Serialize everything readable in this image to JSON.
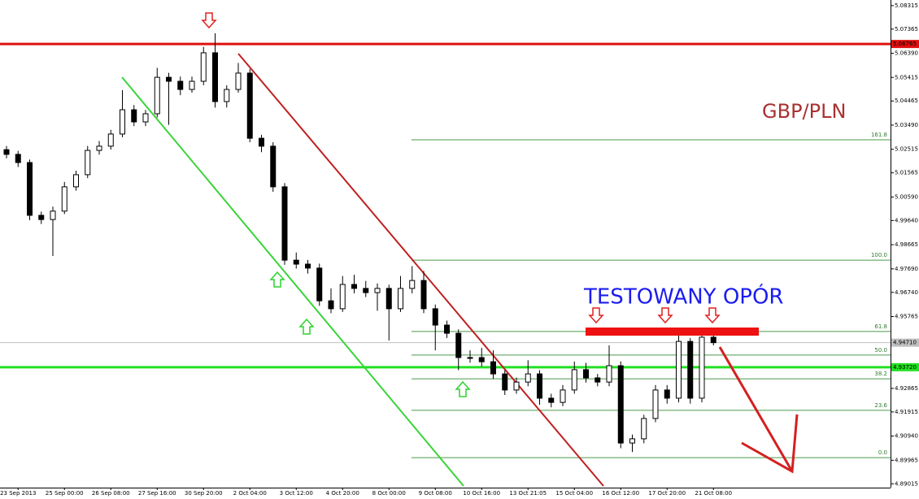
{
  "chart_data": {
    "type": "candlestick",
    "title": "GBP/PLN",
    "annotation": "TESTOWANY OPÓR",
    "up_color": "#ffffff",
    "down_color": "#000000",
    "title_color": "#a83232",
    "annotation_color": "#1c1cf0",
    "categories": [
      null,
      "23 Sep 2013",
      null,
      null,
      null,
      "25 Sep 00:00",
      null,
      null,
      null,
      "26 Sep 08:00",
      null,
      null,
      null,
      "27 Sep 16:00",
      null,
      null,
      null,
      "30 Sep 20:00",
      null,
      null,
      null,
      "2 Oct 04:00",
      null,
      null,
      null,
      "3 Oct 12:00",
      null,
      null,
      null,
      "4 Oct 20:00",
      null,
      null,
      null,
      "8 Oct 00:00",
      null,
      null,
      null,
      "9 Oct 08:00",
      null,
      null,
      null,
      "10 Oct 16:00",
      null,
      null,
      null,
      "13 Oct 21:05",
      null,
      null,
      null,
      "15 Oct 04:00",
      null,
      null,
      null,
      "16 Oct 12:00",
      null,
      null,
      null,
      "17 Oct 20:00",
      null,
      null,
      null,
      "21 Oct 08:00"
    ],
    "ohlc": [
      [
        5.025,
        5.0265,
        5.0215,
        5.0231
      ],
      [
        5.0231,
        5.0245,
        5.018,
        5.0198
      ],
      [
        5.0198,
        5.021,
        4.9965,
        4.9985
      ],
      [
        4.9985,
        5.0,
        4.995,
        4.9968
      ],
      [
        4.9968,
        5.002,
        4.9821,
        5.0002
      ],
      [
        5.0002,
        5.012,
        4.999,
        5.01
      ],
      [
        5.01,
        5.0165,
        5.0085,
        5.0149
      ],
      [
        5.0149,
        5.0265,
        5.0135,
        5.0247
      ],
      [
        5.0247,
        5.0285,
        5.023,
        5.0264
      ],
      [
        5.0264,
        5.033,
        5.025,
        5.0313
      ],
      [
        5.0313,
        5.049,
        5.03,
        5.0411
      ],
      [
        5.0411,
        5.043,
        5.0345,
        5.0362
      ],
      [
        5.0362,
        5.041,
        5.0345,
        5.0395
      ],
      [
        5.0395,
        5.058,
        5.038,
        5.0542
      ],
      [
        5.0542,
        5.056,
        5.035,
        5.0526
      ],
      [
        5.0526,
        5.0545,
        5.047,
        5.0493
      ],
      [
        5.0493,
        5.0545,
        5.048,
        5.0526
      ],
      [
        5.0526,
        5.0665,
        5.051,
        5.0641
      ],
      [
        5.0641,
        5.072,
        5.042,
        5.0444
      ],
      [
        5.0444,
        5.051,
        5.042,
        5.0493
      ],
      [
        5.0493,
        5.06,
        5.048,
        5.0559
      ],
      [
        5.0559,
        5.0575,
        5.028,
        5.0296
      ],
      [
        5.0296,
        5.031,
        5.024,
        5.0264
      ],
      [
        5.0264,
        5.028,
        5.008,
        5.01
      ],
      [
        5.01,
        5.0115,
        4.9785,
        4.9804
      ],
      [
        4.9804,
        4.9835,
        4.977,
        4.9788
      ],
      [
        4.9788,
        4.9805,
        4.975,
        4.9772
      ],
      [
        4.9772,
        4.979,
        4.962,
        4.964
      ],
      [
        4.964,
        4.969,
        4.959,
        4.9608
      ],
      [
        4.9608,
        4.974,
        4.9595,
        4.9706
      ],
      [
        4.9706,
        4.9745,
        4.967,
        4.969
      ],
      [
        4.969,
        4.972,
        4.9655,
        4.9673
      ],
      [
        4.9673,
        4.971,
        4.96,
        4.969
      ],
      [
        4.969,
        4.9705,
        4.948,
        4.9608
      ],
      [
        4.9608,
        4.974,
        4.9595,
        4.969
      ],
      [
        4.969,
        4.978,
        4.967,
        4.9722
      ],
      [
        4.9722,
        4.976,
        4.959,
        4.9608
      ],
      [
        4.9608,
        4.9625,
        4.944,
        4.9542
      ],
      [
        4.9542,
        4.956,
        4.949,
        4.9509
      ],
      [
        4.9509,
        4.9525,
        4.936,
        4.9411
      ],
      [
        4.9411,
        4.944,
        4.939,
        4.9411
      ],
      [
        4.9411,
        4.945,
        4.9375,
        4.9394
      ],
      [
        4.9394,
        4.944,
        4.9325,
        4.9345
      ],
      [
        4.9345,
        4.936,
        4.926,
        4.928
      ],
      [
        4.928,
        4.933,
        4.9265,
        4.9312
      ],
      [
        4.9312,
        4.94,
        4.9295,
        4.9345
      ],
      [
        4.9345,
        4.936,
        4.922,
        4.9247
      ],
      [
        4.9247,
        4.9265,
        4.921,
        4.923
      ],
      [
        4.923,
        4.93,
        4.9215,
        4.928
      ],
      [
        4.928,
        4.9395,
        4.9265,
        4.9362
      ],
      [
        4.9362,
        4.939,
        4.931,
        4.9329
      ],
      [
        4.9329,
        4.9345,
        4.9295,
        4.9312
      ],
      [
        4.9312,
        4.946,
        4.9295,
        4.9378
      ],
      [
        4.9378,
        4.9395,
        4.9045,
        4.9066
      ],
      [
        4.9066,
        4.91,
        4.903,
        4.9083
      ],
      [
        4.9083,
        4.918,
        4.9065,
        4.9165
      ],
      [
        4.9165,
        4.93,
        4.915,
        4.928
      ],
      [
        4.928,
        4.93,
        4.9225,
        4.9247
      ],
      [
        4.9247,
        4.95,
        4.923,
        4.9476
      ],
      [
        4.9476,
        4.949,
        4.9225,
        4.9247
      ],
      [
        4.9247,
        4.951,
        4.923,
        4.9493
      ],
      [
        4.9493,
        4.95,
        4.946,
        4.9471
      ]
    ],
    "ylim": [
      4.8886,
      5.0854
    ],
    "yticks": [
      {
        "value": 5.08315,
        "label": "5.08315"
      },
      {
        "value": 5.07365,
        "label": "5.07365"
      },
      {
        "value": 5.0639,
        "label": "5.06390"
      },
      {
        "value": 5.05415,
        "label": "5.05415"
      },
      {
        "value": 5.04465,
        "label": "5.04465"
      },
      {
        "value": 5.0349,
        "label": "5.03490"
      },
      {
        "value": 5.02515,
        "label": "5.02515"
      },
      {
        "value": 5.01565,
        "label": "5.01565"
      },
      {
        "value": 5.0059,
        "label": "5.00590"
      },
      {
        "value": 4.9964,
        "label": "4.99640"
      },
      {
        "value": 4.98665,
        "label": "4.98665"
      },
      {
        "value": 4.9769,
        "label": "4.97690"
      },
      {
        "value": 4.9674,
        "label": "4.96740"
      },
      {
        "value": 4.95765,
        "label": "4.95765"
      },
      {
        "value": 4.92865,
        "label": "4.92865"
      },
      {
        "value": 4.91915,
        "label": "4.91915"
      },
      {
        "value": 4.9094,
        "label": "4.90940"
      },
      {
        "value": 4.89965,
        "label": "4.89965"
      },
      {
        "value": 4.89015,
        "label": "4.89015"
      }
    ],
    "price_lines": [
      {
        "value": 5.06765,
        "label": "5.06765",
        "color": "#e01010",
        "width": 3
      },
      {
        "value": 4.9471,
        "label": "4.94710",
        "color": "#c0c0c0",
        "width": 1
      },
      {
        "value": 4.9372,
        "label": "4.93720",
        "color": "#22e022",
        "width": 3
      }
    ],
    "fib_color": "#4a9a4a",
    "fibonacci": [
      {
        "value": 5.029,
        "label": "161.8"
      },
      {
        "value": 4.9804,
        "label": "100.0"
      },
      {
        "value": 4.9516,
        "label": "61.8"
      },
      {
        "value": 4.9421,
        "label": "50.0"
      },
      {
        "value": 4.9325,
        "label": "38.2"
      },
      {
        "value": 4.9198,
        "label": "23.6"
      },
      {
        "value": 4.9007,
        "label": "0.0"
      }
    ]
  }
}
